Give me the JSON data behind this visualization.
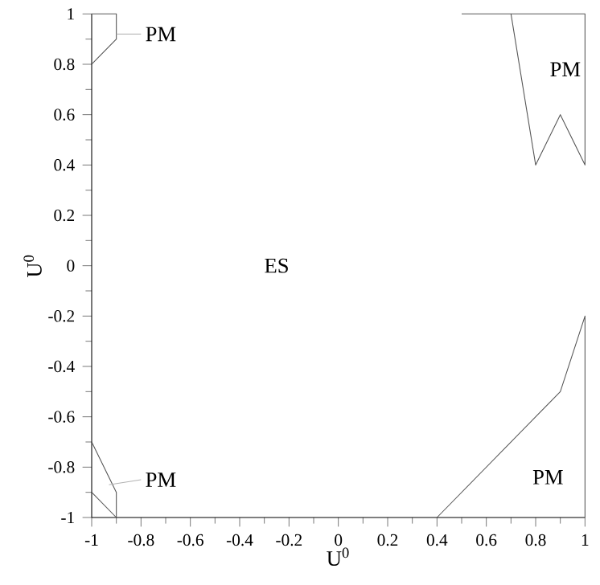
{
  "chart_data": {
    "type": "line",
    "xlabel": "U$^{0}$",
    "ylabel": "U$^{0}$",
    "xlim": [
      -1,
      1
    ],
    "ylim": [
      -1,
      1
    ],
    "xticks": [
      -1,
      -0.8,
      -0.6,
      -0.4,
      -0.2,
      0,
      0.2,
      0.4,
      0.6,
      0.8,
      1
    ],
    "yticks": [
      -1,
      -0.8,
      -0.6,
      -0.4,
      -0.2,
      0,
      0.2,
      0.4,
      0.6,
      0.8,
      1
    ],
    "grid": false,
    "marker": "none",
    "line_style": "solid",
    "series": [
      {
        "color": "#555555",
        "x": [
          -1,
          -0.9,
          -0.9,
          -1
        ],
        "values": [
          1,
          1,
          0.9,
          0.8
        ]
      },
      {
        "color": "#555555",
        "x": [
          0.5,
          1,
          1,
          0.9,
          0.8,
          0.7
        ],
        "values": [
          1,
          1,
          0.4,
          0.6,
          0.4,
          1
        ]
      },
      {
        "color": "#555555",
        "x": [
          -1,
          -0.9,
          -0.9
        ],
        "values": [
          -0.7,
          -0.9,
          -1
        ]
      },
      {
        "color": "#555555",
        "x": [
          -1,
          -0.9
        ],
        "values": [
          -0.9,
          -1
        ]
      },
      {
        "color": "#555555",
        "x": [
          0.4,
          0.9,
          1,
          1
        ],
        "values": [
          -1,
          -0.5,
          -0.2,
          -1
        ]
      }
    ],
    "annotations": [
      {
        "text": "PM",
        "x": -0.9,
        "y": 0.92
      },
      "PM",
      "ES",
      {
        "text": "PM",
        "x": -0.93,
        "y": -0.87
      },
      "PM"
    ]
  }
}
